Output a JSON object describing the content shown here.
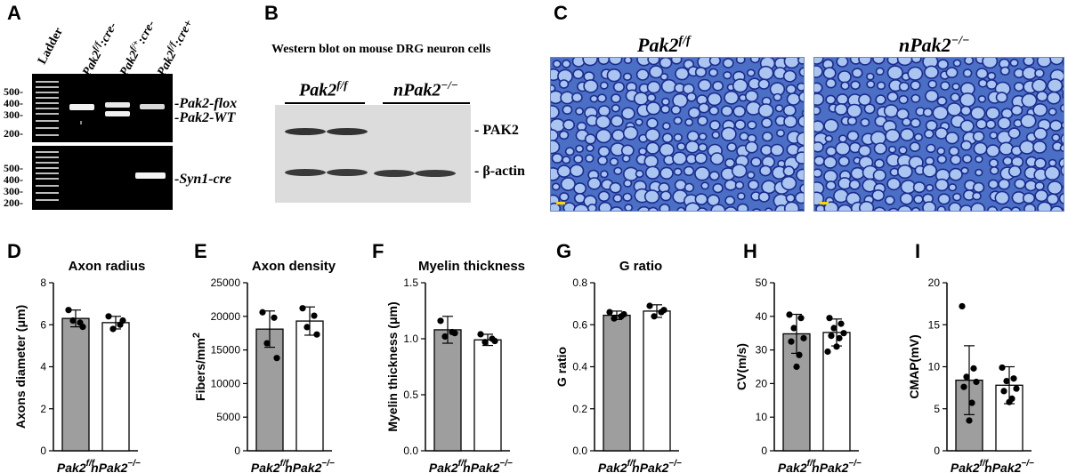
{
  "figure": {
    "panel_labels": [
      "A",
      "B",
      "C",
      "D",
      "E",
      "F",
      "G",
      "H",
      "I"
    ],
    "panel_a": {
      "lanes": [
        "Ladder",
        "Pak2",
        "Pak2",
        "Pak2"
      ],
      "lane_superscripts": [
        "",
        "f/f",
        "f/+",
        "f/f"
      ],
      "lane_suffixes": [
        "",
        ":cre-",
        ":cre-",
        ":cre+"
      ],
      "top_ladder_ticks": [
        "500-",
        "400-",
        "300-",
        "200-"
      ],
      "bottom_ladder_ticks": [
        "500-",
        "400-",
        "300-",
        "200-"
      ],
      "band_labels": [
        "Pak2-flox",
        "Pak2-WT",
        "Syn1-cre"
      ]
    },
    "panel_b": {
      "title": "Western blot on mouse DRG neuron cells",
      "group_labels": [
        "Pak2",
        "nPak2"
      ],
      "group_superscripts": [
        "f/f",
        "−/−"
      ],
      "band_labels": [
        "PAK2",
        "β-actin"
      ]
    },
    "panel_c": {
      "image_labels": [
        "Pak2",
        "nPak2"
      ],
      "image_superscripts": [
        "f/f",
        "−/−"
      ]
    },
    "colors": {
      "control_bar": "#9e9e9e",
      "knockout_bar": "#ffffff",
      "micro_bg": "#4a6fc4",
      "micro_cell": "#a9c5f0",
      "micro_wall": "#1b2b8e"
    }
  },
  "chart_data": [
    {
      "type": "bar",
      "title": "Axon radius",
      "xlabel": "",
      "ylabel": "Axons  diameter (μm)",
      "categories": [
        "Pak2",
        "nPak2"
      ],
      "category_superscripts": [
        "f/f",
        "−/−"
      ],
      "ylim": [
        0,
        8
      ],
      "yticks": [
        "0",
        "2",
        "4",
        "6",
        "8"
      ],
      "values": [
        6.3,
        6.1
      ],
      "errors": [
        0.4,
        0.3
      ],
      "points": [
        [
          6.7,
          6.1,
          6.2,
          5.9
        ],
        [
          6.4,
          6.0,
          5.8,
          6.2
        ]
      ]
    },
    {
      "type": "bar",
      "title": "Axon density",
      "xlabel": "",
      "ylabel": "Fibers/mm",
      "ylabel_superscript": "2",
      "categories": [
        "Pak2",
        "nPak2"
      ],
      "category_superscripts": [
        "f/f",
        "−/−"
      ],
      "ylim": [
        0,
        25000
      ],
      "yticks": [
        "0",
        "5000",
        "10000",
        "15000",
        "20000",
        "25000"
      ],
      "values": [
        18100,
        19300
      ],
      "errors": [
        2700,
        2100
      ],
      "points": [
        [
          20600,
          19800,
          16000,
          13800
        ],
        [
          21200,
          20100,
          18400,
          17300
        ]
      ]
    },
    {
      "type": "bar",
      "title": "Myelin thickness",
      "xlabel": "",
      "ylabel": "Myelin thickness (μm)",
      "categories": [
        "Pak2",
        "nPak2"
      ],
      "category_superscripts": [
        "f/f",
        "−/−"
      ],
      "ylim": [
        0,
        1.5
      ],
      "yticks": [
        "0.0",
        "0.5",
        "1.0",
        "1.5"
      ],
      "values": [
        1.08,
        0.99
      ],
      "errors": [
        0.12,
        0.05
      ],
      "points": [
        [
          1.16,
          1.06,
          1.02,
          1.05
        ],
        [
          1.04,
          1.0,
          0.97,
          0.98
        ]
      ]
    },
    {
      "type": "bar",
      "title": "G ratio",
      "xlabel": "",
      "ylabel": "G ratio",
      "categories": [
        "Pak2",
        "nPak2"
      ],
      "category_superscripts": [
        "f/f",
        "−/−"
      ],
      "ylim": [
        0,
        0.8
      ],
      "yticks": [
        "0.0",
        "0.2",
        "0.4",
        "0.6",
        "0.8"
      ],
      "values": [
        0.645,
        0.665
      ],
      "errors": [
        0.02,
        0.03
      ],
      "points": [
        [
          0.66,
          0.64,
          0.63,
          0.65
        ],
        [
          0.69,
          0.66,
          0.64,
          0.67
        ]
      ]
    },
    {
      "type": "bar",
      "title": "",
      "xlabel": "",
      "ylabel": "CV(m/s)",
      "categories": [
        "Pak2",
        "nPak2"
      ],
      "category_superscripts": [
        "f/f",
        "−/−"
      ],
      "ylim": [
        0,
        50
      ],
      "yticks": [
        "0",
        "10",
        "20",
        "30",
        "40",
        "50"
      ],
      "values": [
        34.8,
        35.2
      ],
      "errors": [
        5.8,
        4.0
      ],
      "points": [
        [
          40.5,
          39.5,
          36.5,
          33.5,
          32.5,
          28.5,
          25.0
        ],
        [
          39.5,
          37.8,
          36.5,
          35.0,
          34.2,
          33.5,
          31.0,
          29.5
        ]
      ]
    },
    {
      "type": "bar",
      "title": "",
      "xlabel": "",
      "ylabel": "CMAP(mV)",
      "categories": [
        "Pak2",
        "nPak2"
      ],
      "category_superscripts": [
        "f/f",
        "−/−"
      ],
      "ylim": [
        0,
        20
      ],
      "yticks": [
        "0",
        "5",
        "10",
        "15",
        "20"
      ],
      "values": [
        8.4,
        7.8
      ],
      "errors": [
        4.1,
        2.2
      ],
      "points": [
        [
          17.2,
          9.8,
          8.8,
          8.2,
          7.6,
          5.7,
          3.6
        ],
        [
          9.9,
          8.6,
          8.3,
          7.4,
          7.1,
          6.2,
          5.8
        ]
      ]
    }
  ]
}
